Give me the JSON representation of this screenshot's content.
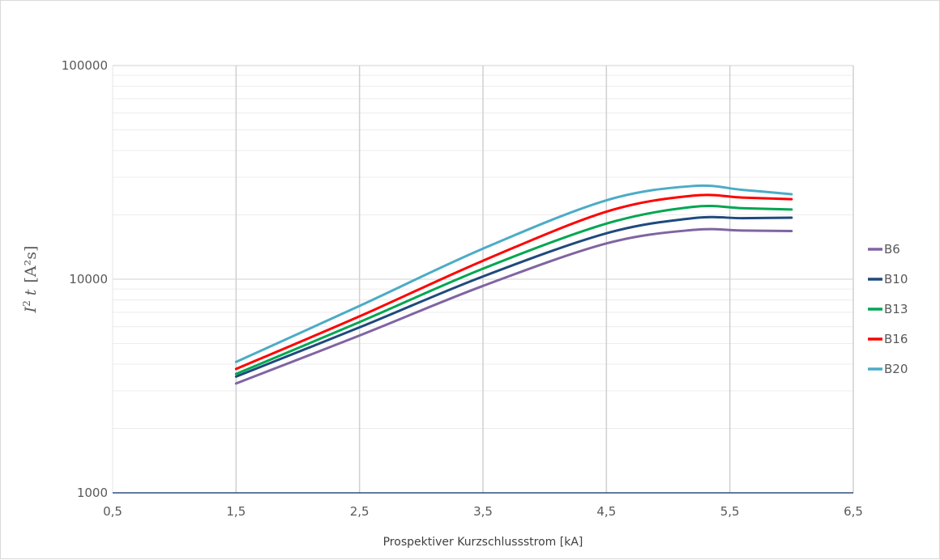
{
  "chart_data": {
    "type": "line",
    "title": "",
    "xlabel": "Prospektiver Kurzschlussstrom [kA]",
    "ylabel": {
      "base": "I",
      "sup": "2",
      "italic_var": "t",
      "unit": "[A²s]"
    },
    "x_scale": "linear",
    "y_scale": "log",
    "xlim": [
      0.5,
      6.5
    ],
    "ylim": [
      1000,
      100000
    ],
    "x_ticks": [
      "0,5",
      "1,5",
      "2,5",
      "3,5",
      "4,5",
      "5,5",
      "6,5"
    ],
    "x_tick_values": [
      0.5,
      1.5,
      2.5,
      3.5,
      4.5,
      5.5,
      6.5
    ],
    "y_ticks": [
      "1000",
      "10000",
      "100000"
    ],
    "y_tick_values": [
      1000,
      10000,
      100000
    ],
    "grid": true,
    "legend_position": "right",
    "x": [
      1.5,
      2.5,
      3.5,
      4.5,
      5.2,
      5.6,
      6.0
    ],
    "series": [
      {
        "name": "B6",
        "color": "#8064a2",
        "values": [
          3250,
          5450,
          9300,
          14700,
          17000,
          16900,
          16800
        ]
      },
      {
        "name": "B10",
        "color": "#1f497d",
        "values": [
          3500,
          5950,
          10300,
          16400,
          19300,
          19300,
          19400
        ]
      },
      {
        "name": "B13",
        "color": "#00a651",
        "values": [
          3600,
          6300,
          11200,
          18200,
          21800,
          21500,
          21200
        ]
      },
      {
        "name": "B16",
        "color": "#ff0000",
        "values": [
          3800,
          6700,
          12200,
          20700,
          24600,
          24100,
          23700
        ]
      },
      {
        "name": "B20",
        "color": "#4bacc6",
        "values": [
          4100,
          7500,
          13900,
          23400,
          27300,
          26200,
          25000
        ]
      }
    ]
  }
}
